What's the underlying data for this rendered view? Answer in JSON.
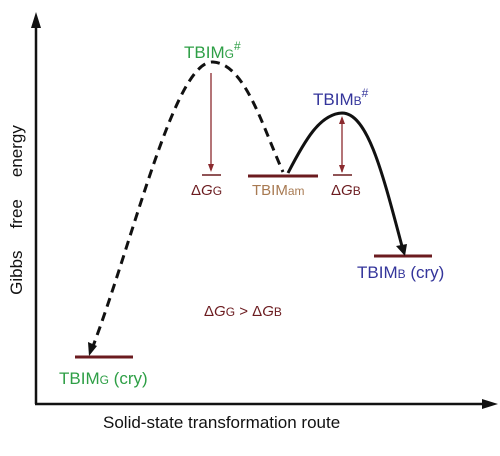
{
  "axes": {
    "y_label_words": [
      "Gibbs",
      "free",
      "energy"
    ],
    "x_label": "Solid-state transformation route"
  },
  "states": {
    "tbim_g_cry": {
      "main": "TBIM",
      "sub": "G",
      "suffix": " (cry)"
    },
    "tbim_g_ts": {
      "main": "TBIM",
      "sub": "G",
      "sup": "#"
    },
    "tbim_am": {
      "main": "TBIM",
      "sub": "am"
    },
    "tbim_b_ts": {
      "main": "TBIM",
      "sub": "B",
      "sup": "#"
    },
    "tbim_b_cry": {
      "main": "TBIM",
      "sub": "B",
      "suffix": " (cry)"
    }
  },
  "barriers": {
    "dg_g": {
      "delta": "Δ",
      "symbol": "G",
      "sub": "G"
    },
    "dg_b": {
      "delta": "Δ",
      "symbol": "G",
      "sub": "B"
    }
  },
  "comparison": {
    "delta1": "Δ",
    "g1": "G",
    "sub1": "G",
    "op": " > ",
    "delta2": "Δ",
    "g2": "G",
    "sub2": "B"
  },
  "colors": {
    "green": "#2e9f46",
    "brown": "#a87a52",
    "blue": "#34359b",
    "dark_red": "#6b1b1f",
    "axis": "#111111"
  }
}
